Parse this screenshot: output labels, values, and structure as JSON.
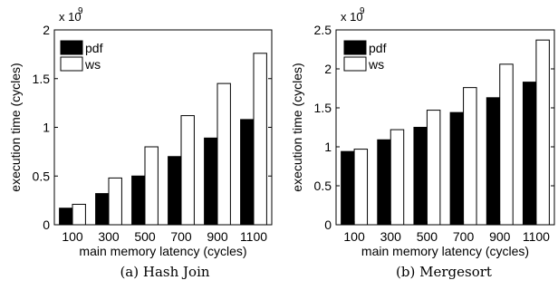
{
  "chart_data": [
    {
      "type": "bar",
      "caption": "(a) Hash Join",
      "xlabel": "main memory latency (cycles)",
      "ylabel": "execution time (cycles)",
      "exponent_base": "x 10",
      "exponent_power": "9",
      "categories": [
        "100",
        "300",
        "500",
        "700",
        "900",
        "1100"
      ],
      "ylim": [
        0,
        2
      ],
      "yticks": [
        0,
        0.5,
        1,
        1.5,
        2
      ],
      "ytick_labels": [
        "0",
        "0.5",
        "1",
        "1.5",
        "2"
      ],
      "legend_position": "top-left",
      "series": [
        {
          "name": "pdf",
          "color": "#000000",
          "values": [
            0.17,
            0.32,
            0.5,
            0.7,
            0.89,
            1.08
          ]
        },
        {
          "name": "ws",
          "color": "#ffffff",
          "values": [
            0.21,
            0.48,
            0.8,
            1.12,
            1.45,
            1.76
          ]
        }
      ]
    },
    {
      "type": "bar",
      "caption": "(b) Mergesort",
      "xlabel": "main memory latency (cycles)",
      "ylabel": "execution time (cycles)",
      "exponent_base": "x 10",
      "exponent_power": "9",
      "categories": [
        "100",
        "300",
        "500",
        "700",
        "900",
        "1100"
      ],
      "ylim": [
        0,
        2.5
      ],
      "yticks": [
        0,
        0.5,
        1,
        1.5,
        2,
        2.5
      ],
      "ytick_labels": [
        "0",
        "0.5",
        "1",
        "1.5",
        "2",
        "2.5"
      ],
      "legend_position": "top-left",
      "series": [
        {
          "name": "pdf",
          "color": "#000000",
          "values": [
            0.94,
            1.09,
            1.25,
            1.44,
            1.63,
            1.83
          ]
        },
        {
          "name": "ws",
          "color": "#ffffff",
          "values": [
            0.97,
            1.22,
            1.47,
            1.76,
            2.06,
            2.37
          ]
        }
      ]
    }
  ]
}
